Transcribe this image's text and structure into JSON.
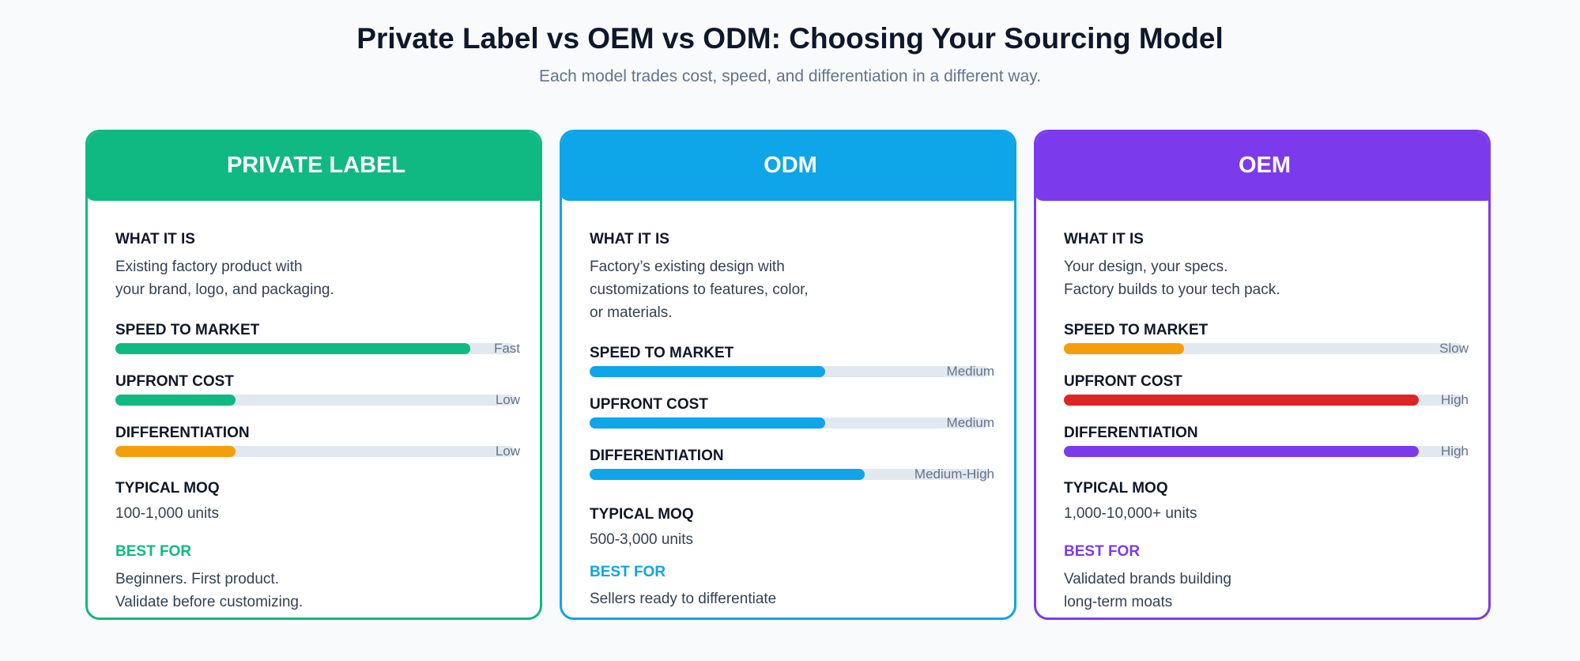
{
  "title": "Private Label vs OEM vs ODM: Choosing Your Sourcing Model",
  "subtitle": "Each model trades cost, speed, and differentiation in a different way.",
  "cards": [
    {
      "name": "PRIVATE LABEL",
      "color": "#10b981",
      "what_label": "WHAT IT IS",
      "what_lines": [
        "Existing factory product with",
        "your brand, logo, and packaging."
      ],
      "metrics": [
        {
          "label": "SPEED TO MARKET",
          "level": "Fast",
          "value": 0.89,
          "color": "#10b981"
        },
        {
          "label": "UPFRONT COST",
          "level": "Low",
          "value": 0.3,
          "color": "#10b981"
        },
        {
          "label": "DIFFERENTIATION",
          "level": "Low",
          "value": 0.3,
          "color": "#f59e0b"
        }
      ],
      "moq_label": "TYPICAL MOQ",
      "moq": "100-1,000 units",
      "best_label": "BEST FOR",
      "best_lines": [
        "Beginners. First product.",
        "Validate before customizing."
      ]
    },
    {
      "name": "ODM",
      "color": "#0ea5e9",
      "what_label": "WHAT IT IS",
      "what_lines": [
        "Factory’s existing design with",
        "customizations to features, color,",
        "or materials."
      ],
      "metrics": [
        {
          "label": "SPEED TO MARKET",
          "level": "Medium",
          "value": 0.59,
          "color": "#0ea5e9"
        },
        {
          "label": "UPFRONT COST",
          "level": "Medium",
          "value": 0.59,
          "color": "#0ea5e9"
        },
        {
          "label": "DIFFERENTIATION",
          "level": "Medium-High",
          "value": 0.69,
          "color": "#0ea5e9"
        }
      ],
      "moq_label": "TYPICAL MOQ",
      "moq": "500-3,000 units",
      "best_label": "BEST FOR",
      "best_lines": [
        "Sellers ready to differentiate"
      ]
    },
    {
      "name": "OEM",
      "color": "#7c3aed",
      "what_label": "WHAT IT IS",
      "what_lines": [
        "Your design, your specs.",
        "Factory builds to your tech pack."
      ],
      "metrics": [
        {
          "label": "SPEED TO MARKET",
          "level": "Slow",
          "value": 0.3,
          "color": "#f59e0b"
        },
        {
          "label": "UPFRONT COST",
          "level": "High",
          "value": 0.89,
          "color": "#dc2626"
        },
        {
          "label": "DIFFERENTIATION",
          "level": "High",
          "value": 0.89,
          "color": "#7c3aed"
        }
      ],
      "moq_label": "TYPICAL MOQ",
      "moq": "1,000-10,000+ units",
      "best_label": "BEST FOR",
      "best_lines": [
        "Validated brands building",
        "long-term moats"
      ]
    }
  ]
}
